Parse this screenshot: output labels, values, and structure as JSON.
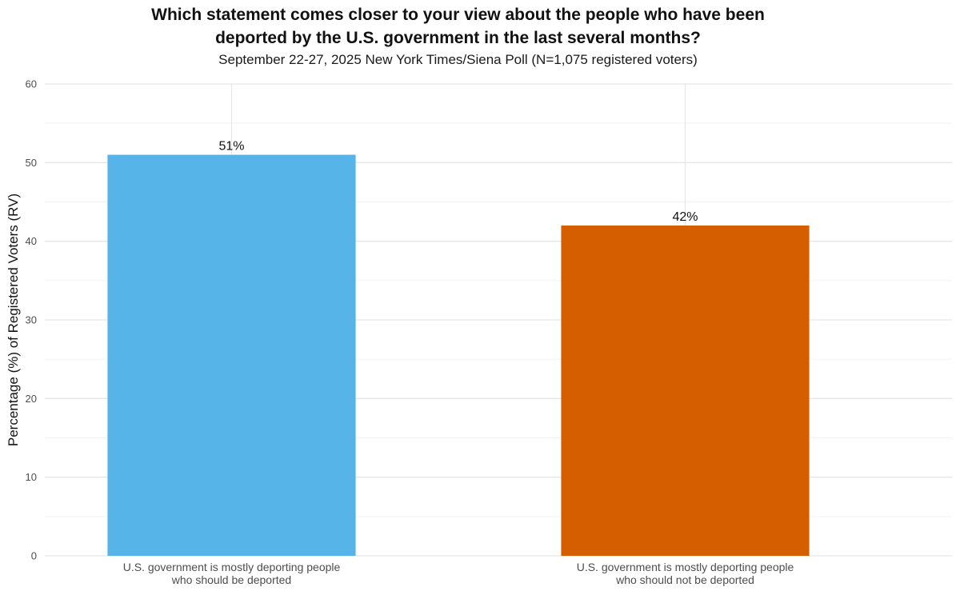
{
  "chart_data": {
    "type": "bar",
    "title_lines": [
      "Which statement comes closer to your view about the people who have been",
      "deported by the U.S. government in the last several months?"
    ],
    "subtitle": "September 22-27, 2025 New York Times/Siena Poll (N=1,075 registered voters)",
    "xlabel": "",
    "ylabel": "Percentage (%) of Registered Voters (RV)",
    "ylim": [
      0,
      60
    ],
    "yticks": [
      0,
      10,
      20,
      30,
      40,
      50,
      60
    ],
    "grid": true,
    "categories": [
      [
        "U.S. government is mostly deporting people",
        "who should be deported"
      ],
      [
        "U.S. government is mostly deporting people",
        "who should not be deported"
      ]
    ],
    "values": [
      51,
      42
    ],
    "data_labels": [
      "51%",
      "42%"
    ],
    "colors": [
      "#56B4E9",
      "#D55E00"
    ]
  }
}
